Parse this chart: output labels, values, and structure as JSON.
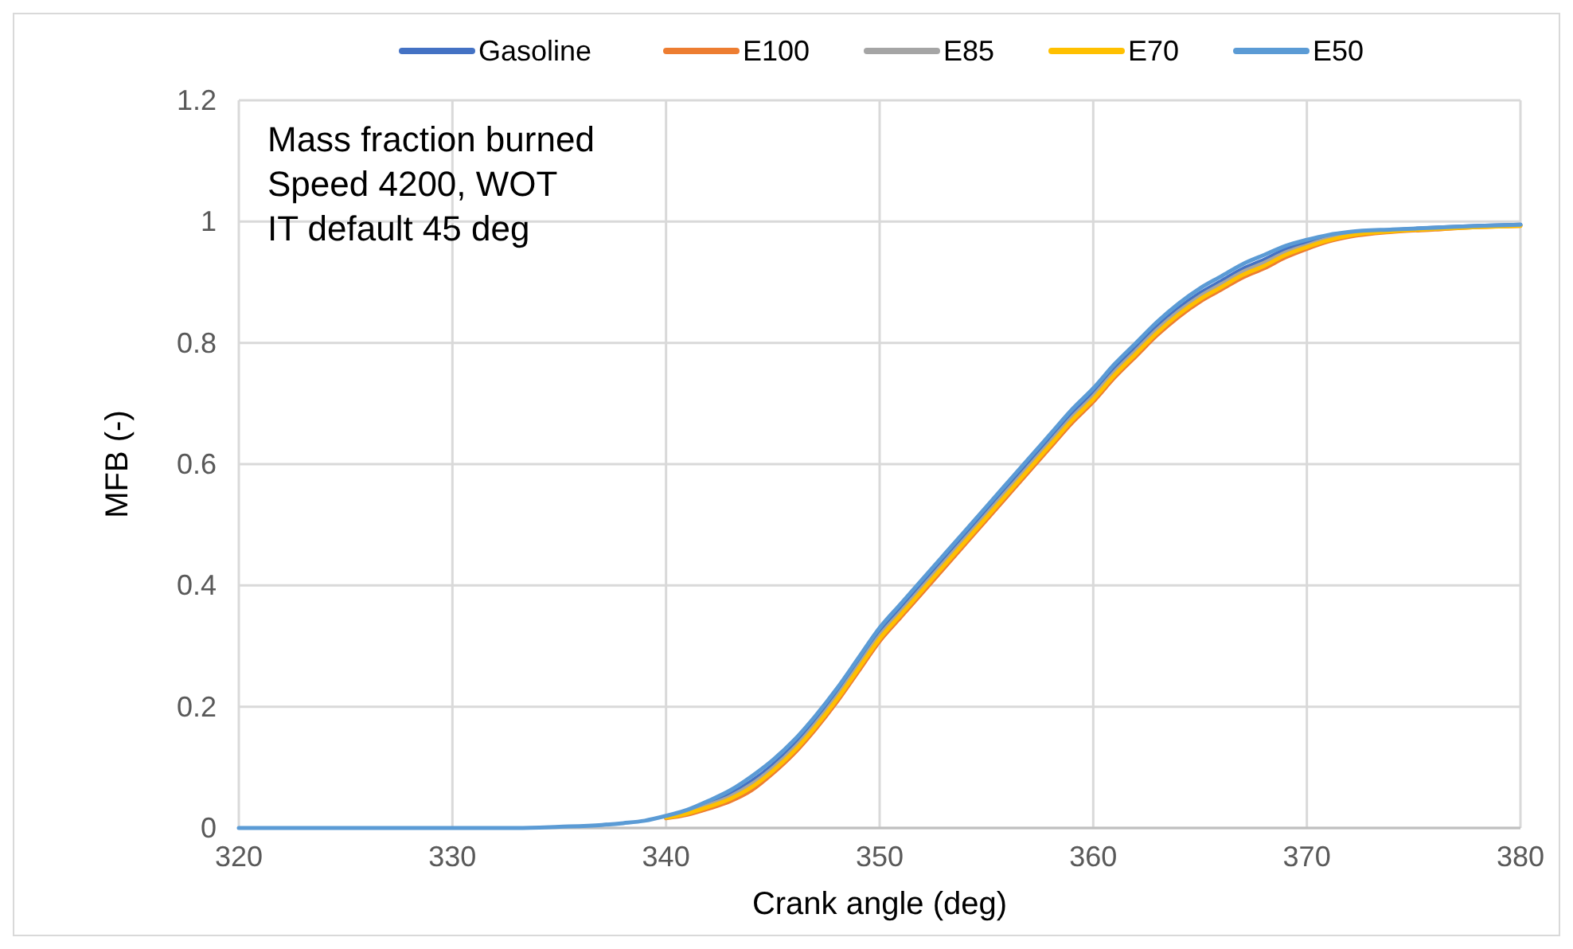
{
  "chart_data": {
    "type": "line",
    "xlabel": "Crank angle (deg)",
    "ylabel": "MFB (-)",
    "annotations": [
      "Mass fraction burned",
      "Speed 4200, WOT",
      "IT default 45 deg"
    ],
    "xlim": [
      320,
      380
    ],
    "xticks": [
      320,
      330,
      340,
      350,
      360,
      370,
      380
    ],
    "ylim": [
      0,
      1.2
    ],
    "yticks": [
      0,
      0.2,
      0.4,
      0.6,
      0.8,
      1,
      1.2
    ],
    "grid": true,
    "legend": "top",
    "marker": "none",
    "line_style": "solid",
    "x": [
      320,
      325,
      330,
      333,
      335,
      337,
      338,
      339,
      340,
      341,
      342,
      343,
      344,
      345,
      346,
      347,
      348,
      349,
      350,
      351,
      352,
      353,
      354,
      355,
      356,
      357,
      358,
      359,
      360,
      361,
      362,
      363,
      364,
      365,
      366,
      367,
      368,
      369,
      370,
      371,
      372,
      374,
      376,
      378,
      380
    ],
    "series": [
      {
        "name": "Gasoline",
        "color": "#4472c4",
        "values": [
          null,
          null,
          null,
          null,
          null,
          null,
          null,
          null,
          0.019,
          0.028,
          0.041,
          0.056,
          0.077,
          0.104,
          0.137,
          0.177,
          0.222,
          0.272,
          0.322,
          0.362,
          0.402,
          0.442,
          0.482,
          0.522,
          0.562,
          0.602,
          0.642,
          0.682,
          0.717,
          0.757,
          0.792,
          0.827,
          0.857,
          0.882,
          0.902,
          0.922,
          0.937,
          0.954,
          0.965,
          0.975,
          0.981,
          0.986,
          0.99,
          0.993,
          0.995
        ]
      },
      {
        "name": "E100",
        "color": "#ed7d31",
        "values": [
          null,
          null,
          null,
          null,
          null,
          null,
          null,
          null,
          0.016,
          0.022,
          0.032,
          0.044,
          0.062,
          0.09,
          0.123,
          0.163,
          0.208,
          0.258,
          0.308,
          0.348,
          0.388,
          0.428,
          0.468,
          0.508,
          0.548,
          0.588,
          0.628,
          0.668,
          0.703,
          0.743,
          0.778,
          0.813,
          0.843,
          0.868,
          0.888,
          0.908,
          0.923,
          0.941,
          0.955,
          0.967,
          0.975,
          0.983,
          0.987,
          0.991,
          0.993
        ]
      },
      {
        "name": "E85",
        "color": "#a5a5a5",
        "values": [
          null,
          null,
          null,
          null,
          null,
          null,
          null,
          null,
          0.018,
          0.026,
          0.038,
          0.052,
          0.072,
          0.099,
          0.132,
          0.172,
          0.217,
          0.267,
          0.317,
          0.357,
          0.397,
          0.437,
          0.477,
          0.517,
          0.557,
          0.597,
          0.637,
          0.677,
          0.712,
          0.752,
          0.787,
          0.822,
          0.852,
          0.877,
          0.897,
          0.917,
          0.932,
          0.949,
          0.961,
          0.972,
          0.979,
          0.985,
          0.989,
          0.992,
          0.994
        ]
      },
      {
        "name": "E70",
        "color": "#ffc000",
        "values": [
          null,
          null,
          null,
          null,
          null,
          null,
          null,
          null,
          0.017,
          0.024,
          0.035,
          0.048,
          0.067,
          0.094,
          0.127,
          0.167,
          0.212,
          0.262,
          0.312,
          0.352,
          0.392,
          0.432,
          0.472,
          0.512,
          0.552,
          0.592,
          0.632,
          0.672,
          0.707,
          0.747,
          0.782,
          0.817,
          0.847,
          0.872,
          0.892,
          0.912,
          0.927,
          0.945,
          0.958,
          0.969,
          0.977,
          0.984,
          0.988,
          0.991,
          0.993
        ]
      },
      {
        "name": "E50",
        "color": "#5b9bd5",
        "values": [
          0,
          0,
          0,
          0,
          0.002,
          0.005,
          0.008,
          0.012,
          0.02,
          0.03,
          0.045,
          0.062,
          0.085,
          0.112,
          0.145,
          0.185,
          0.23,
          0.28,
          0.33,
          0.37,
          0.41,
          0.45,
          0.49,
          0.53,
          0.57,
          0.61,
          0.65,
          0.69,
          0.725,
          0.765,
          0.8,
          0.835,
          0.865,
          0.89,
          0.91,
          0.93,
          0.945,
          0.96,
          0.97,
          0.978,
          0.983,
          0.987,
          0.99,
          0.993,
          0.995
        ]
      }
    ]
  }
}
